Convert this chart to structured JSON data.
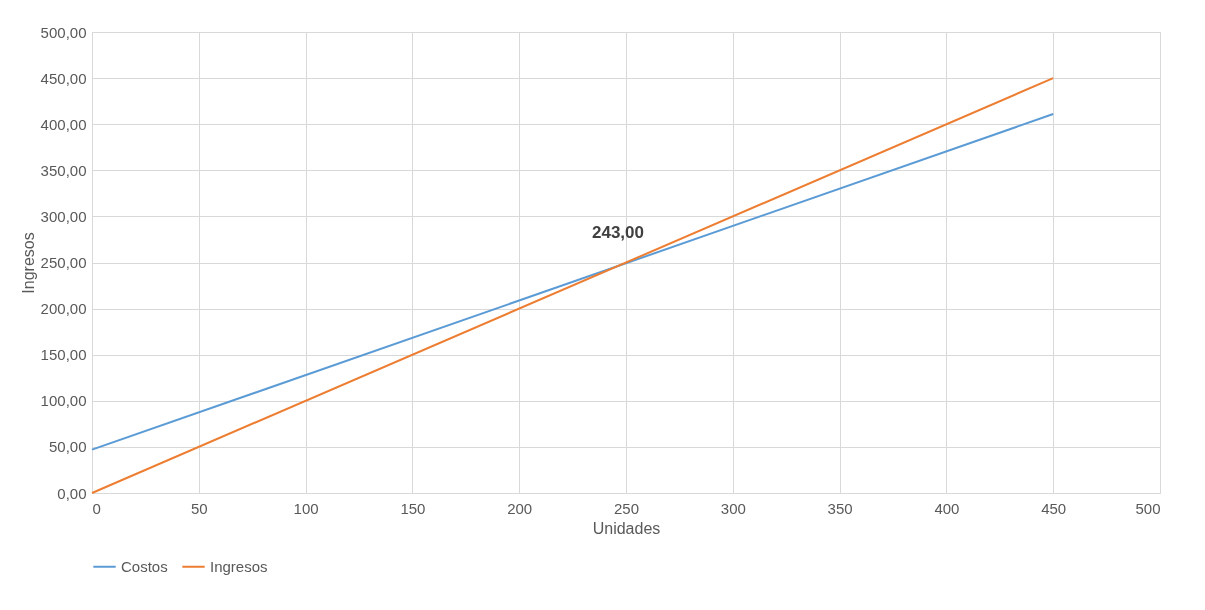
{
  "chart_data": {
    "type": "line",
    "xlabel": "Unidades",
    "ylabel": "Ingresos",
    "x": [
      0,
      450
    ],
    "series": [
      {
        "name": "Costos",
        "color": "#5b9bd5",
        "values": [
          47,
          411
        ]
      },
      {
        "name": "Ingresos",
        "color": "#ed7d31",
        "values": [
          0,
          450
        ]
      }
    ],
    "xlim": [
      0,
      500
    ],
    "xticks": [
      0,
      50,
      100,
      150,
      200,
      250,
      300,
      350,
      400,
      450,
      500
    ],
    "ylim": [
      0,
      500
    ],
    "yticks": [
      {
        "value": 0,
        "label": "0,00"
      },
      {
        "value": 50,
        "label": "50,00"
      },
      {
        "value": 100,
        "label": "100,00"
      },
      {
        "value": 150,
        "label": "150,00"
      },
      {
        "value": 200,
        "label": "200,00"
      },
      {
        "value": 250,
        "label": "250,00"
      },
      {
        "value": 300,
        "label": "300,00"
      },
      {
        "value": 350,
        "label": "350,00"
      },
      {
        "value": 400,
        "label": "400,00"
      },
      {
        "value": 450,
        "label": "450,00"
      },
      {
        "value": 500,
        "label": "500,00"
      }
    ],
    "annotations": [
      {
        "text": "243,00",
        "x": 250,
        "y": 250
      }
    ],
    "grid": true,
    "legend": "bottom",
    "line_style": "solid"
  }
}
